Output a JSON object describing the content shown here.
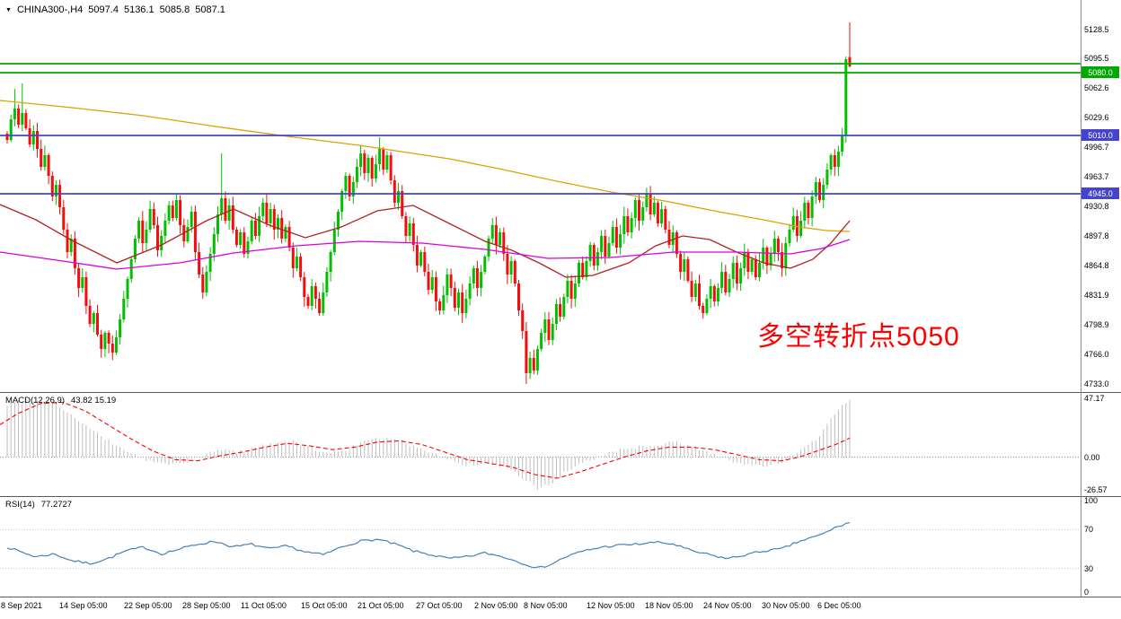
{
  "header": {
    "symbol": "CHINA300-,H4",
    "open": "5097.4",
    "high": "5136.1",
    "low": "5085.8",
    "close": "5087.1"
  },
  "annotation": {
    "text": "多空转折点5050",
    "color": "#ff0000"
  },
  "price_badges": [
    {
      "label": "5080.0",
      "color": "#00A800"
    },
    {
      "label": "5010.0",
      "color": "#4444CC"
    },
    {
      "label": "4945.0",
      "color": "#4444CC"
    }
  ],
  "chart_data": [
    {
      "type": "candlestick",
      "title": "CHINA300-,H4",
      "timeframe": "H4",
      "y_axis_ticks": [
        "5128.5",
        "5095.5",
        "5062.6",
        "5029.6",
        "4996.7",
        "4963.7",
        "4930.8",
        "4897.8",
        "4864.8",
        "4831.9",
        "4798.9",
        "4766.0",
        "4733.0"
      ],
      "x_axis_ticks": [
        "8 Sep 2021",
        "14 Sep 05:00",
        "22 Sep 05:00",
        "28 Sep 05:00",
        "11 Oct 05:00",
        "15 Oct 05:00",
        "21 Oct 05:00",
        "27 Oct 05:00",
        "2 Nov 05:00",
        "8 Nov 05:00",
        "12 Nov 05:00",
        "18 Nov 05:00",
        "24 Nov 05:00",
        "30 Nov 05:00",
        "6 Dec 05:00"
      ],
      "hlines": [
        {
          "price": 5090.0,
          "color": "#00A800"
        },
        {
          "price": 5080.0,
          "color": "#00A800"
        },
        {
          "price": 5010.0,
          "color": "#4444CC"
        },
        {
          "price": 4945.0,
          "color": "#4444CC"
        }
      ],
      "colors": {
        "up": "#00C000",
        "down": "#F50D0D"
      },
      "closes": [
        5005,
        5028,
        5040,
        5022,
        5035,
        5018,
        5000,
        5015,
        4995,
        4975,
        4988,
        4965,
        4942,
        4955,
        4930,
        4905,
        4880,
        4895,
        4862,
        4840,
        4852,
        4820,
        4800,
        4812,
        4788,
        4772,
        4790,
        4778,
        4768,
        4785,
        4805,
        4828,
        4850,
        4872,
        4895,
        4915,
        4890,
        4905,
        4928,
        4910,
        4882,
        4898,
        4915,
        4932,
        4918,
        4938,
        4910,
        4892,
        4908,
        4925,
        4880,
        4855,
        4835,
        4858,
        4878,
        4900,
        4922,
        4940,
        4915,
        4932,
        4905,
        4888,
        4902,
        4878,
        4892,
        4915,
        4898,
        4920,
        4935,
        4912,
        4928,
        4905,
        4918,
        4895,
        4908,
        4885,
        4862,
        4875,
        4852,
        4830,
        4820,
        4842,
        4828,
        4812,
        4835,
        4858,
        4880,
        4905,
        4925,
        4948,
        4965,
        4942,
        4958,
        4975,
        4990,
        4968,
        4985,
        4962,
        4978,
        4995,
        4972,
        4988,
        4960,
        4935,
        4948,
        4920,
        4898,
        4912,
        4888,
        4865,
        4880,
        4858,
        4838,
        4852,
        4825,
        4815,
        4832,
        4855,
        4840,
        4818,
        4835,
        4812,
        4828,
        4845,
        4862,
        4840,
        4858,
        4875,
        4895,
        4910,
        4888,
        4902,
        4878,
        4855,
        4870,
        4845,
        4815,
        4792,
        4745,
        4762,
        4748,
        4772,
        4790,
        4805,
        4782,
        4800,
        4822,
        4808,
        4830,
        4848,
        4828,
        4845,
        4868,
        4852,
        4870,
        4888,
        4865,
        4880,
        4898,
        4875,
        4890,
        4908,
        4885,
        4900,
        4920,
        4902,
        4918,
        4938,
        4915,
        4930,
        4945,
        4922,
        4935,
        4912,
        4928,
        4905,
        4888,
        4902,
        4878,
        4858,
        4872,
        4848,
        4830,
        4845,
        4820,
        4812,
        4828,
        4842,
        4825,
        4840,
        4858,
        4835,
        4850,
        4868,
        4845,
        4862,
        4880,
        4858,
        4872,
        4852,
        4868,
        4885,
        4865,
        4878,
        4895,
        4880,
        4862,
        4890,
        4905,
        4920,
        4898,
        4915,
        4935,
        4918,
        4942,
        4958,
        4938,
        4955,
        4972,
        4988,
        4975,
        4992,
        5010,
        5095,
        5087.1
      ],
      "candle_overrides": {
        "2": [
          5028,
          5062,
          5020,
          5040
        ],
        "4": [
          5022,
          5068,
          5015,
          5035
        ],
        "57": [
          4922,
          4990,
          4915,
          4940
        ],
        "99": [
          4978,
          5008,
          4970,
          4995
        ],
        "138": [
          4792,
          4802,
          4733,
          4745
        ],
        "223": [
          5010,
          5098,
          5002,
          5095
        ],
        "224": [
          5097.4,
          5136.1,
          5085.8,
          5087.1
        ]
      },
      "moving_averages": [
        {
          "name": "slow-ma",
          "color": "#D9A300",
          "points": [
            [
              0,
              5049
            ],
            [
              80,
              5041
            ],
            [
              160,
              5032
            ],
            [
              240,
              5020
            ],
            [
              320,
              5009
            ],
            [
              400,
              4999
            ],
            [
              440,
              4993
            ],
            [
              500,
              4984
            ],
            [
              560,
              4972
            ],
            [
              620,
              4959
            ],
            [
              680,
              4947
            ],
            [
              740,
              4937
            ],
            [
              800,
              4925
            ],
            [
              850,
              4916
            ],
            [
              890,
              4908
            ],
            [
              920,
              4904
            ],
            [
              946,
              4903
            ]
          ]
        },
        {
          "name": "medium-ma",
          "color": "#B22222",
          "points": [
            [
              0,
              4933
            ],
            [
              40,
              4916
            ],
            [
              80,
              4893
            ],
            [
              130,
              4868
            ],
            [
              180,
              4888
            ],
            [
              230,
              4915
            ],
            [
              260,
              4928
            ],
            [
              300,
              4910
            ],
            [
              340,
              4896
            ],
            [
              380,
              4908
            ],
            [
              420,
              4926
            ],
            [
              460,
              4932
            ],
            [
              500,
              4912
            ],
            [
              540,
              4892
            ],
            [
              570,
              4882
            ],
            [
              600,
              4868
            ],
            [
              630,
              4852
            ],
            [
              660,
              4854
            ],
            [
              700,
              4868
            ],
            [
              730,
              4887
            ],
            [
              760,
              4898
            ],
            [
              790,
              4894
            ],
            [
              820,
              4880
            ],
            [
              850,
              4868
            ],
            [
              880,
              4862
            ],
            [
              905,
              4872
            ],
            [
              925,
              4890
            ],
            [
              946,
              4915
            ]
          ]
        },
        {
          "name": "magenta-ma",
          "color": "#DD00DD",
          "points": [
            [
              0,
              4880
            ],
            [
              70,
              4870
            ],
            [
              130,
              4861
            ],
            [
              200,
              4868
            ],
            [
              260,
              4879
            ],
            [
              330,
              4887
            ],
            [
              400,
              4892
            ],
            [
              470,
              4890
            ],
            [
              540,
              4883
            ],
            [
              610,
              4873
            ],
            [
              680,
              4874
            ],
            [
              750,
              4880
            ],
            [
              820,
              4880
            ],
            [
              880,
              4878
            ],
            [
              915,
              4884
            ],
            [
              946,
              4894
            ]
          ]
        }
      ]
    },
    {
      "type": "bar+line",
      "name": "MACD",
      "label": "MACD(12,26,9)",
      "values_label": "43.82 15.19",
      "params": [
        12,
        26,
        9
      ],
      "current_macd": 43.82,
      "current_signal": 15.19,
      "y_ticks": [
        "47.17",
        "0.00",
        "-26.57"
      ],
      "histogram_color": "#BDBDBD",
      "signal_color": "#FF0000",
      "histogram": [
        [
          8,
          42
        ],
        [
          20,
          45
        ],
        [
          40,
          46
        ],
        [
          60,
          44
        ],
        [
          75,
          36
        ],
        [
          90,
          28
        ],
        [
          105,
          20
        ],
        [
          120,
          13
        ],
        [
          135,
          7
        ],
        [
          150,
          2
        ],
        [
          165,
          -3
        ],
        [
          185,
          -6
        ],
        [
          205,
          -4
        ],
        [
          225,
          1
        ],
        [
          245,
          6
        ],
        [
          265,
          4
        ],
        [
          285,
          8
        ],
        [
          305,
          11
        ],
        [
          325,
          12
        ],
        [
          345,
          8
        ],
        [
          365,
          3
        ],
        [
          385,
          6
        ],
        [
          405,
          12
        ],
        [
          425,
          15
        ],
        [
          445,
          13
        ],
        [
          465,
          8
        ],
        [
          485,
          2
        ],
        [
          505,
          -4
        ],
        [
          525,
          -7
        ],
        [
          545,
          -5
        ],
        [
          565,
          -10
        ],
        [
          585,
          -18
        ],
        [
          600,
          -26
        ],
        [
          615,
          -20
        ],
        [
          630,
          -12
        ],
        [
          650,
          -5
        ],
        [
          670,
          2
        ],
        [
          690,
          6
        ],
        [
          710,
          8
        ],
        [
          730,
          10
        ],
        [
          750,
          12
        ],
        [
          770,
          8
        ],
        [
          790,
          4
        ],
        [
          810,
          -2
        ],
        [
          830,
          -6
        ],
        [
          850,
          -8
        ],
        [
          870,
          -4
        ],
        [
          890,
          4
        ],
        [
          905,
          12
        ],
        [
          915,
          20
        ],
        [
          925,
          30
        ],
        [
          935,
          40
        ],
        [
          946,
          47
        ]
      ],
      "signal": [
        [
          0,
          26
        ],
        [
          20,
          35
        ],
        [
          45,
          43
        ],
        [
          70,
          44
        ],
        [
          95,
          37
        ],
        [
          120,
          26
        ],
        [
          145,
          15
        ],
        [
          170,
          5
        ],
        [
          195,
          -2
        ],
        [
          220,
          -3
        ],
        [
          245,
          1
        ],
        [
          270,
          4
        ],
        [
          295,
          8
        ],
        [
          320,
          11
        ],
        [
          345,
          9
        ],
        [
          370,
          6
        ],
        [
          395,
          8
        ],
        [
          420,
          12
        ],
        [
          445,
          13
        ],
        [
          470,
          10
        ],
        [
          495,
          4
        ],
        [
          520,
          -2
        ],
        [
          545,
          -5
        ],
        [
          570,
          -8
        ],
        [
          595,
          -14
        ],
        [
          620,
          -17
        ],
        [
          645,
          -12
        ],
        [
          670,
          -6
        ],
        [
          695,
          0
        ],
        [
          720,
          5
        ],
        [
          745,
          8
        ],
        [
          770,
          8
        ],
        [
          795,
          6
        ],
        [
          820,
          2
        ],
        [
          845,
          -2
        ],
        [
          870,
          -3
        ],
        [
          890,
          0
        ],
        [
          910,
          5
        ],
        [
          930,
          10
        ],
        [
          946,
          15.19
        ]
      ]
    },
    {
      "type": "line",
      "name": "RSI",
      "label": "RSI(14)",
      "value": 77.2727,
      "period": 14,
      "y_ticks": [
        "100",
        "70",
        "30",
        "0"
      ],
      "levels": [
        70,
        30
      ],
      "line_color": "#4682B4",
      "line": [
        [
          0,
          55
        ],
        [
          20,
          48
        ],
        [
          40,
          42
        ],
        [
          60,
          45
        ],
        [
          80,
          38
        ],
        [
          100,
          35
        ],
        [
          120,
          40
        ],
        [
          140,
          48
        ],
        [
          160,
          52
        ],
        [
          180,
          45
        ],
        [
          200,
          50
        ],
        [
          220,
          55
        ],
        [
          240,
          58
        ],
        [
          260,
          52
        ],
        [
          280,
          55
        ],
        [
          300,
          50
        ],
        [
          320,
          53
        ],
        [
          340,
          47
        ],
        [
          360,
          44
        ],
        [
          380,
          52
        ],
        [
          400,
          58
        ],
        [
          420,
          60
        ],
        [
          440,
          55
        ],
        [
          460,
          48
        ],
        [
          480,
          44
        ],
        [
          500,
          40
        ],
        [
          520,
          42
        ],
        [
          540,
          46
        ],
        [
          560,
          42
        ],
        [
          580,
          36
        ],
        [
          600,
          30
        ],
        [
          615,
          35
        ],
        [
          630,
          42
        ],
        [
          650,
          48
        ],
        [
          670,
          52
        ],
        [
          690,
          54
        ],
        [
          710,
          55
        ],
        [
          730,
          57
        ],
        [
          750,
          55
        ],
        [
          770,
          48
        ],
        [
          790,
          44
        ],
        [
          810,
          40
        ],
        [
          830,
          44
        ],
        [
          850,
          48
        ],
        [
          870,
          50
        ],
        [
          890,
          58
        ],
        [
          905,
          62
        ],
        [
          915,
          65
        ],
        [
          925,
          70
        ],
        [
          935,
          74
        ],
        [
          946,
          77.27
        ]
      ]
    }
  ]
}
